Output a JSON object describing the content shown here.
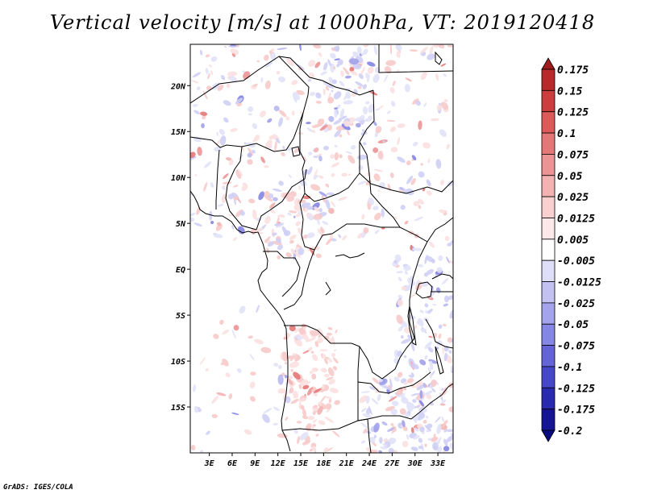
{
  "chart_data": {
    "type": "heatmap",
    "title": "Vertical velocity [m/s] at 1000hPa, VT: 2019120418",
    "variable": "Vertical velocity",
    "units": "m/s",
    "level": "1000hPa",
    "valid_time": "2019120418",
    "x_axis": {
      "ticks": [
        {
          "value": 3,
          "label": "3E"
        },
        {
          "value": 6,
          "label": "6E"
        },
        {
          "value": 9,
          "label": "9E"
        },
        {
          "value": 12,
          "label": "12E"
        },
        {
          "value": 15,
          "label": "15E"
        },
        {
          "value": 18,
          "label": "18E"
        },
        {
          "value": 21,
          "label": "21E"
        },
        {
          "value": 24,
          "label": "24E"
        },
        {
          "value": 27,
          "label": "27E"
        },
        {
          "value": 30,
          "label": "30E"
        },
        {
          "value": 33,
          "label": "33E"
        }
      ],
      "range": [
        0.5,
        35
      ]
    },
    "y_axis": {
      "ticks": [
        {
          "value": 20,
          "label": "20N"
        },
        {
          "value": 15,
          "label": "15N"
        },
        {
          "value": 10,
          "label": "10N"
        },
        {
          "value": 5,
          "label": "5N"
        },
        {
          "value": 0,
          "label": "EQ"
        },
        {
          "value": -5,
          "label": "5S"
        },
        {
          "value": -10,
          "label": "10S"
        },
        {
          "value": -15,
          "label": "15S"
        }
      ],
      "range": [
        -20,
        24.5
      ]
    },
    "colorbar": {
      "levels": [
        "0.175",
        "0.15",
        "0.125",
        "0.1",
        "0.075",
        "0.05",
        "0.025",
        "0.0125",
        "0.005",
        "-0.005",
        "-0.0125",
        "-0.025",
        "-0.05",
        "-0.075",
        "-0.1",
        "-0.125",
        "-0.175",
        "-0.2"
      ],
      "colors": [
        "#a01c1c",
        "#b82a2a",
        "#cc3e3e",
        "#dc5a5a",
        "#e47878",
        "#ec9494",
        "#f2b2b2",
        "#f8d0d0",
        "#fce8e8",
        "#ffffff",
        "#dedef8",
        "#c2c2f2",
        "#a4a4ec",
        "#8686e4",
        "#6464d8",
        "#4646c8",
        "#2a2ab0",
        "#141494",
        "#0a0a80"
      ]
    }
  },
  "credit": "GrADS: IGES/COLA"
}
